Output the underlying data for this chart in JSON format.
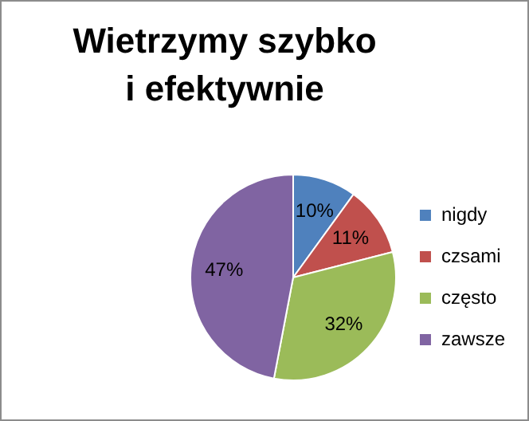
{
  "chart_data": {
    "type": "pie",
    "title": "Wietrzymy szybko i efektywnie",
    "categories": [
      "nigdy",
      "czsami",
      "często",
      "zawsze"
    ],
    "values": [
      10,
      11,
      32,
      47
    ],
    "colors": [
      "#4f81bd",
      "#c0504d",
      "#9bbb59",
      "#8064a2"
    ],
    "value_labels": [
      "10%",
      "11%",
      "32%",
      "47%"
    ],
    "legend": "right"
  }
}
